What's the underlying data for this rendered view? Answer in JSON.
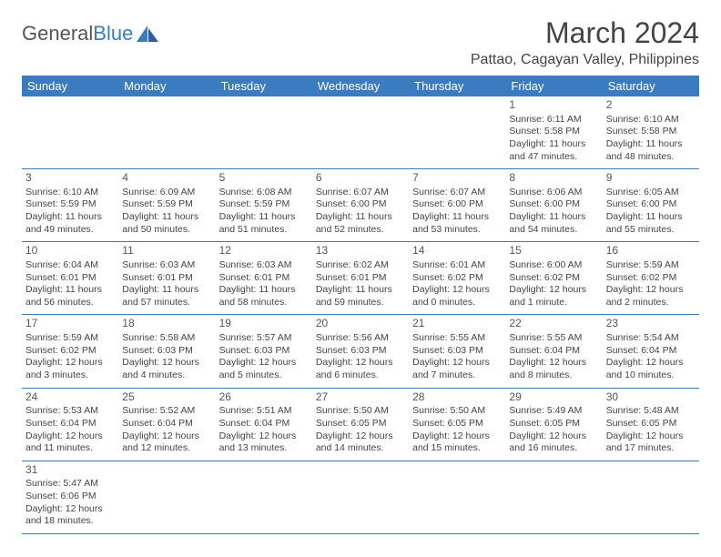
{
  "brand": {
    "general": "General",
    "blue": "Blue"
  },
  "title": "March 2024",
  "location": "Pattao, Cagayan Valley, Philippines",
  "colors": {
    "header_bg": "#3b7bbf",
    "header_text": "#ffffff",
    "rule": "#3b7bbf",
    "text": "#444444",
    "bg": "#ffffff"
  },
  "dayHeaders": [
    "Sunday",
    "Monday",
    "Tuesday",
    "Wednesday",
    "Thursday",
    "Friday",
    "Saturday"
  ],
  "weeks": [
    [
      null,
      null,
      null,
      null,
      null,
      {
        "n": "1",
        "sr": "6:11 AM",
        "ss": "5:58 PM",
        "dl": "11 hours and 47 minutes."
      },
      {
        "n": "2",
        "sr": "6:10 AM",
        "ss": "5:58 PM",
        "dl": "11 hours and 48 minutes."
      }
    ],
    [
      {
        "n": "3",
        "sr": "6:10 AM",
        "ss": "5:59 PM",
        "dl": "11 hours and 49 minutes."
      },
      {
        "n": "4",
        "sr": "6:09 AM",
        "ss": "5:59 PM",
        "dl": "11 hours and 50 minutes."
      },
      {
        "n": "5",
        "sr": "6:08 AM",
        "ss": "5:59 PM",
        "dl": "11 hours and 51 minutes."
      },
      {
        "n": "6",
        "sr": "6:07 AM",
        "ss": "6:00 PM",
        "dl": "11 hours and 52 minutes."
      },
      {
        "n": "7",
        "sr": "6:07 AM",
        "ss": "6:00 PM",
        "dl": "11 hours and 53 minutes."
      },
      {
        "n": "8",
        "sr": "6:06 AM",
        "ss": "6:00 PM",
        "dl": "11 hours and 54 minutes."
      },
      {
        "n": "9",
        "sr": "6:05 AM",
        "ss": "6:00 PM",
        "dl": "11 hours and 55 minutes."
      }
    ],
    [
      {
        "n": "10",
        "sr": "6:04 AM",
        "ss": "6:01 PM",
        "dl": "11 hours and 56 minutes."
      },
      {
        "n": "11",
        "sr": "6:03 AM",
        "ss": "6:01 PM",
        "dl": "11 hours and 57 minutes."
      },
      {
        "n": "12",
        "sr": "6:03 AM",
        "ss": "6:01 PM",
        "dl": "11 hours and 58 minutes."
      },
      {
        "n": "13",
        "sr": "6:02 AM",
        "ss": "6:01 PM",
        "dl": "11 hours and 59 minutes."
      },
      {
        "n": "14",
        "sr": "6:01 AM",
        "ss": "6:02 PM",
        "dl": "12 hours and 0 minutes."
      },
      {
        "n": "15",
        "sr": "6:00 AM",
        "ss": "6:02 PM",
        "dl": "12 hours and 1 minute."
      },
      {
        "n": "16",
        "sr": "5:59 AM",
        "ss": "6:02 PM",
        "dl": "12 hours and 2 minutes."
      }
    ],
    [
      {
        "n": "17",
        "sr": "5:59 AM",
        "ss": "6:02 PM",
        "dl": "12 hours and 3 minutes."
      },
      {
        "n": "18",
        "sr": "5:58 AM",
        "ss": "6:03 PM",
        "dl": "12 hours and 4 minutes."
      },
      {
        "n": "19",
        "sr": "5:57 AM",
        "ss": "6:03 PM",
        "dl": "12 hours and 5 minutes."
      },
      {
        "n": "20",
        "sr": "5:56 AM",
        "ss": "6:03 PM",
        "dl": "12 hours and 6 minutes."
      },
      {
        "n": "21",
        "sr": "5:55 AM",
        "ss": "6:03 PM",
        "dl": "12 hours and 7 minutes."
      },
      {
        "n": "22",
        "sr": "5:55 AM",
        "ss": "6:04 PM",
        "dl": "12 hours and 8 minutes."
      },
      {
        "n": "23",
        "sr": "5:54 AM",
        "ss": "6:04 PM",
        "dl": "12 hours and 10 minutes."
      }
    ],
    [
      {
        "n": "24",
        "sr": "5:53 AM",
        "ss": "6:04 PM",
        "dl": "12 hours and 11 minutes."
      },
      {
        "n": "25",
        "sr": "5:52 AM",
        "ss": "6:04 PM",
        "dl": "12 hours and 12 minutes."
      },
      {
        "n": "26",
        "sr": "5:51 AM",
        "ss": "6:04 PM",
        "dl": "12 hours and 13 minutes."
      },
      {
        "n": "27",
        "sr": "5:50 AM",
        "ss": "6:05 PM",
        "dl": "12 hours and 14 minutes."
      },
      {
        "n": "28",
        "sr": "5:50 AM",
        "ss": "6:05 PM",
        "dl": "12 hours and 15 minutes."
      },
      {
        "n": "29",
        "sr": "5:49 AM",
        "ss": "6:05 PM",
        "dl": "12 hours and 16 minutes."
      },
      {
        "n": "30",
        "sr": "5:48 AM",
        "ss": "6:05 PM",
        "dl": "12 hours and 17 minutes."
      }
    ],
    [
      {
        "n": "31",
        "sr": "5:47 AM",
        "ss": "6:06 PM",
        "dl": "12 hours and 18 minutes."
      },
      null,
      null,
      null,
      null,
      null,
      null
    ]
  ],
  "labels": {
    "sunrise": "Sunrise: ",
    "sunset": "Sunset: ",
    "daylight": "Daylight: "
  }
}
